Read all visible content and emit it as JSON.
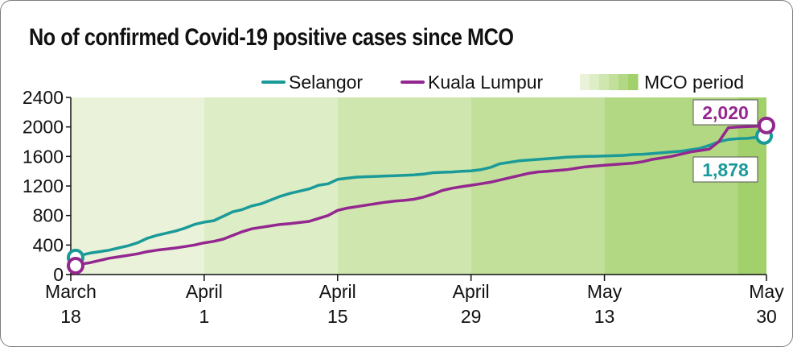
{
  "chart_data": {
    "type": "line",
    "title": "No of confirmed Covid-19 positive cases since MCO",
    "xlabel": "",
    "ylabel": "",
    "ylim": [
      0,
      2400
    ],
    "yticks": [
      0,
      400,
      800,
      1200,
      1600,
      2000,
      2400
    ],
    "grid": false,
    "legend_position": "top-right",
    "x_range": [
      "2020-03-18",
      "2020-05-30"
    ],
    "x_ticks": [
      {
        "date": "2020-03-18",
        "line1": "March",
        "line2": "18"
      },
      {
        "date": "2020-04-01",
        "line1": "April",
        "line2": "1"
      },
      {
        "date": "2020-04-15",
        "line1": "April",
        "line2": "15"
      },
      {
        "date": "2020-04-29",
        "line1": "April",
        "line2": "29"
      },
      {
        "date": "2020-05-13",
        "line1": "May",
        "line2": "13"
      },
      {
        "date": "2020-05-30",
        "line1": "May",
        "line2": "30"
      }
    ],
    "shaded_region": {
      "label": "MCO period",
      "phases": [
        {
          "start": "2020-03-18",
          "end": "2020-04-01",
          "color": "#eaf3da"
        },
        {
          "start": "2020-04-01",
          "end": "2020-04-15",
          "color": "#ddedc6"
        },
        {
          "start": "2020-04-15",
          "end": "2020-04-29",
          "color": "#cfe6ae"
        },
        {
          "start": "2020-04-29",
          "end": "2020-05-13",
          "color": "#c2e09a"
        },
        {
          "start": "2020-05-13",
          "end": "2020-05-27",
          "color": "#b2d884"
        },
        {
          "start": "2020-05-27",
          "end": "2020-05-30",
          "color": "#a2d06b"
        }
      ]
    },
    "series": [
      {
        "name": "Selangor",
        "color": "#1a9a98",
        "end_label": "1,878",
        "points": [
          [
            "2020-03-18",
            230
          ],
          [
            "2020-03-19",
            260
          ],
          [
            "2020-03-20",
            290
          ],
          [
            "2020-03-21",
            310
          ],
          [
            "2020-03-22",
            330
          ],
          [
            "2020-03-23",
            360
          ],
          [
            "2020-03-24",
            390
          ],
          [
            "2020-03-25",
            430
          ],
          [
            "2020-03-26",
            490
          ],
          [
            "2020-03-27",
            530
          ],
          [
            "2020-03-28",
            560
          ],
          [
            "2020-03-29",
            590
          ],
          [
            "2020-03-30",
            630
          ],
          [
            "2020-03-31",
            680
          ],
          [
            "2020-04-01",
            710
          ],
          [
            "2020-04-02",
            730
          ],
          [
            "2020-04-03",
            790
          ],
          [
            "2020-04-04",
            850
          ],
          [
            "2020-04-05",
            880
          ],
          [
            "2020-04-06",
            930
          ],
          [
            "2020-04-07",
            960
          ],
          [
            "2020-04-08",
            1010
          ],
          [
            "2020-04-09",
            1060
          ],
          [
            "2020-04-10",
            1100
          ],
          [
            "2020-04-11",
            1130
          ],
          [
            "2020-04-12",
            1160
          ],
          [
            "2020-04-13",
            1210
          ],
          [
            "2020-04-14",
            1230
          ],
          [
            "2020-04-15",
            1290
          ],
          [
            "2020-04-16",
            1305
          ],
          [
            "2020-04-17",
            1320
          ],
          [
            "2020-04-18",
            1325
          ],
          [
            "2020-04-19",
            1330
          ],
          [
            "2020-04-20",
            1335
          ],
          [
            "2020-04-21",
            1340
          ],
          [
            "2020-04-22",
            1345
          ],
          [
            "2020-04-23",
            1350
          ],
          [
            "2020-04-24",
            1360
          ],
          [
            "2020-04-25",
            1380
          ],
          [
            "2020-04-26",
            1385
          ],
          [
            "2020-04-27",
            1390
          ],
          [
            "2020-04-28",
            1400
          ],
          [
            "2020-04-29",
            1405
          ],
          [
            "2020-04-30",
            1420
          ],
          [
            "2020-05-01",
            1450
          ],
          [
            "2020-05-02",
            1500
          ],
          [
            "2020-05-03",
            1520
          ],
          [
            "2020-05-04",
            1540
          ],
          [
            "2020-05-05",
            1550
          ],
          [
            "2020-05-06",
            1560
          ],
          [
            "2020-05-07",
            1570
          ],
          [
            "2020-05-08",
            1580
          ],
          [
            "2020-05-09",
            1590
          ],
          [
            "2020-05-10",
            1595
          ],
          [
            "2020-05-11",
            1600
          ],
          [
            "2020-05-12",
            1603
          ],
          [
            "2020-05-13",
            1606
          ],
          [
            "2020-05-14",
            1610
          ],
          [
            "2020-05-15",
            1615
          ],
          [
            "2020-05-16",
            1625
          ],
          [
            "2020-05-17",
            1630
          ],
          [
            "2020-05-18",
            1640
          ],
          [
            "2020-05-19",
            1650
          ],
          [
            "2020-05-20",
            1660
          ],
          [
            "2020-05-21",
            1670
          ],
          [
            "2020-05-22",
            1690
          ],
          [
            "2020-05-23",
            1710
          ],
          [
            "2020-05-24",
            1750
          ],
          [
            "2020-05-25",
            1800
          ],
          [
            "2020-05-26",
            1830
          ],
          [
            "2020-05-27",
            1840
          ],
          [
            "2020-05-28",
            1845
          ],
          [
            "2020-05-29",
            1860
          ],
          [
            "2020-05-30",
            1878
          ]
        ]
      },
      {
        "name": "Kuala Lumpur",
        "color": "#93278f",
        "end_label": "2,020",
        "points": [
          [
            "2020-03-18",
            120
          ],
          [
            "2020-03-19",
            140
          ],
          [
            "2020-03-20",
            160
          ],
          [
            "2020-03-21",
            190
          ],
          [
            "2020-03-22",
            220
          ],
          [
            "2020-03-23",
            240
          ],
          [
            "2020-03-24",
            260
          ],
          [
            "2020-03-25",
            280
          ],
          [
            "2020-03-26",
            310
          ],
          [
            "2020-03-27",
            330
          ],
          [
            "2020-03-28",
            345
          ],
          [
            "2020-03-29",
            360
          ],
          [
            "2020-03-30",
            380
          ],
          [
            "2020-03-31",
            400
          ],
          [
            "2020-04-01",
            430
          ],
          [
            "2020-04-02",
            450
          ],
          [
            "2020-04-03",
            480
          ],
          [
            "2020-04-04",
            530
          ],
          [
            "2020-04-05",
            580
          ],
          [
            "2020-04-06",
            620
          ],
          [
            "2020-04-07",
            640
          ],
          [
            "2020-04-08",
            660
          ],
          [
            "2020-04-09",
            680
          ],
          [
            "2020-04-10",
            690
          ],
          [
            "2020-04-11",
            705
          ],
          [
            "2020-04-12",
            720
          ],
          [
            "2020-04-13",
            760
          ],
          [
            "2020-04-14",
            800
          ],
          [
            "2020-04-15",
            870
          ],
          [
            "2020-04-16",
            900
          ],
          [
            "2020-04-17",
            920
          ],
          [
            "2020-04-18",
            940
          ],
          [
            "2020-04-19",
            960
          ],
          [
            "2020-04-20",
            980
          ],
          [
            "2020-04-21",
            995
          ],
          [
            "2020-04-22",
            1005
          ],
          [
            "2020-04-23",
            1020
          ],
          [
            "2020-04-24",
            1050
          ],
          [
            "2020-04-25",
            1090
          ],
          [
            "2020-04-26",
            1140
          ],
          [
            "2020-04-27",
            1170
          ],
          [
            "2020-04-28",
            1190
          ],
          [
            "2020-04-29",
            1210
          ],
          [
            "2020-04-30",
            1230
          ],
          [
            "2020-05-01",
            1250
          ],
          [
            "2020-05-02",
            1280
          ],
          [
            "2020-05-03",
            1310
          ],
          [
            "2020-05-04",
            1340
          ],
          [
            "2020-05-05",
            1370
          ],
          [
            "2020-05-06",
            1390
          ],
          [
            "2020-05-07",
            1400
          ],
          [
            "2020-05-08",
            1410
          ],
          [
            "2020-05-09",
            1420
          ],
          [
            "2020-05-10",
            1440
          ],
          [
            "2020-05-11",
            1460
          ],
          [
            "2020-05-12",
            1470
          ],
          [
            "2020-05-13",
            1480
          ],
          [
            "2020-05-14",
            1490
          ],
          [
            "2020-05-15",
            1500
          ],
          [
            "2020-05-16",
            1510
          ],
          [
            "2020-05-17",
            1530
          ],
          [
            "2020-05-18",
            1560
          ],
          [
            "2020-05-19",
            1580
          ],
          [
            "2020-05-20",
            1600
          ],
          [
            "2020-05-21",
            1630
          ],
          [
            "2020-05-22",
            1660
          ],
          [
            "2020-05-23",
            1680
          ],
          [
            "2020-05-24",
            1700
          ],
          [
            "2020-05-25",
            1800
          ],
          [
            "2020-05-26",
            1990
          ],
          [
            "2020-05-27",
            2000
          ],
          [
            "2020-05-28",
            2005
          ],
          [
            "2020-05-29",
            2010
          ],
          [
            "2020-05-30",
            2020
          ]
        ]
      }
    ]
  }
}
